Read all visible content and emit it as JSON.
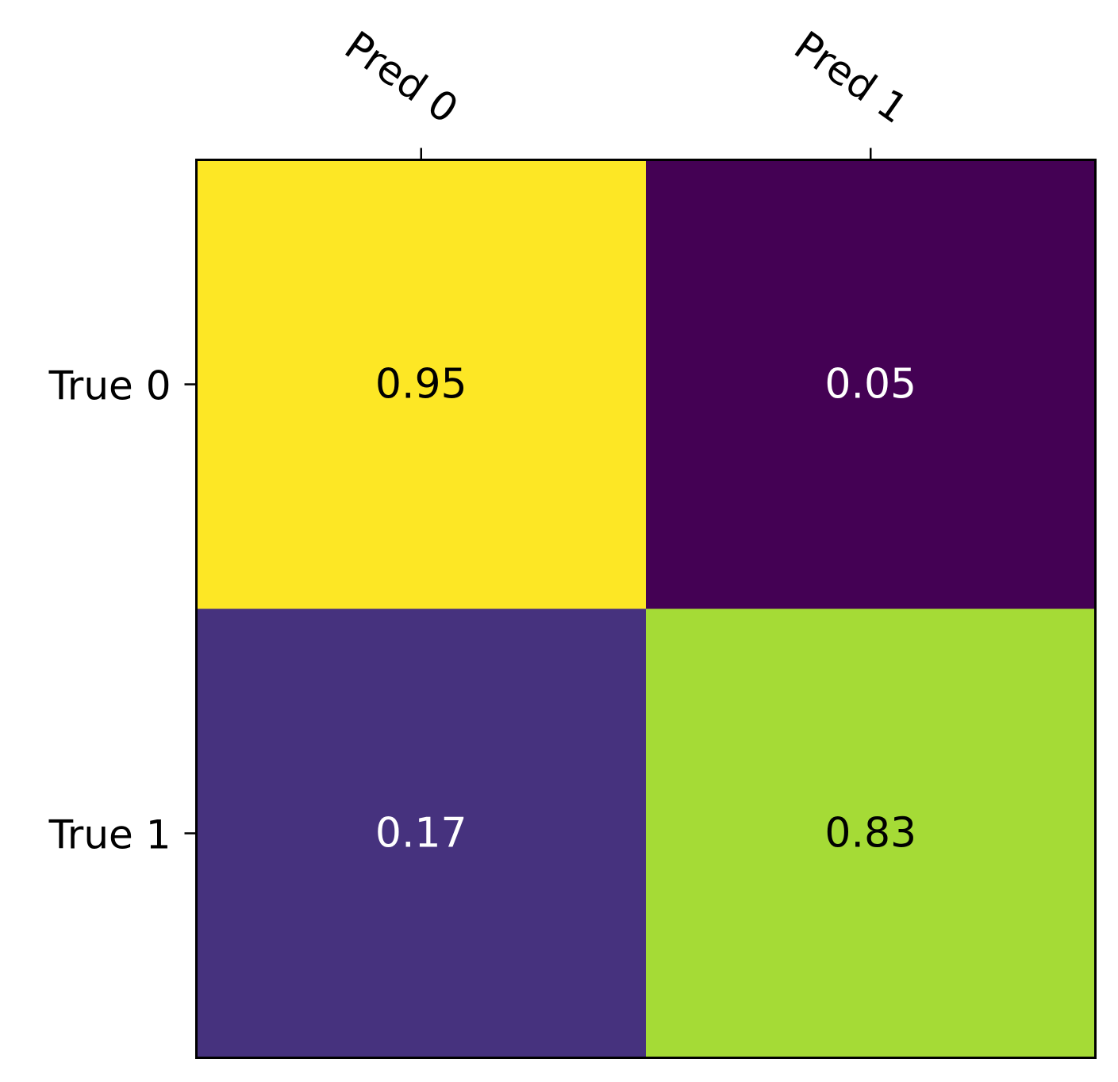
{
  "chart_data": {
    "type": "heatmap",
    "title": "",
    "xlabel": "",
    "ylabel": "",
    "x_categories": [
      "Pred 0",
      "Pred 1"
    ],
    "y_categories": [
      "True 0",
      "True 1"
    ],
    "values": [
      [
        0.95,
        0.05
      ],
      [
        0.17,
        0.83
      ]
    ],
    "cell_labels": [
      [
        "0.95",
        "0.05"
      ],
      [
        "0.17",
        "0.83"
      ]
    ],
    "colormap": "viridis",
    "x_ticks_position": "top",
    "grid": false,
    "legend": "none",
    "colors": {
      "cells": [
        [
          "#fde725",
          "#440154"
        ],
        [
          "#46327e",
          "#a5db36"
        ]
      ],
      "cell_text": [
        [
          "#000000",
          "#ffffff"
        ],
        [
          "#ffffff",
          "#000000"
        ]
      ],
      "axes": "#000000"
    }
  }
}
